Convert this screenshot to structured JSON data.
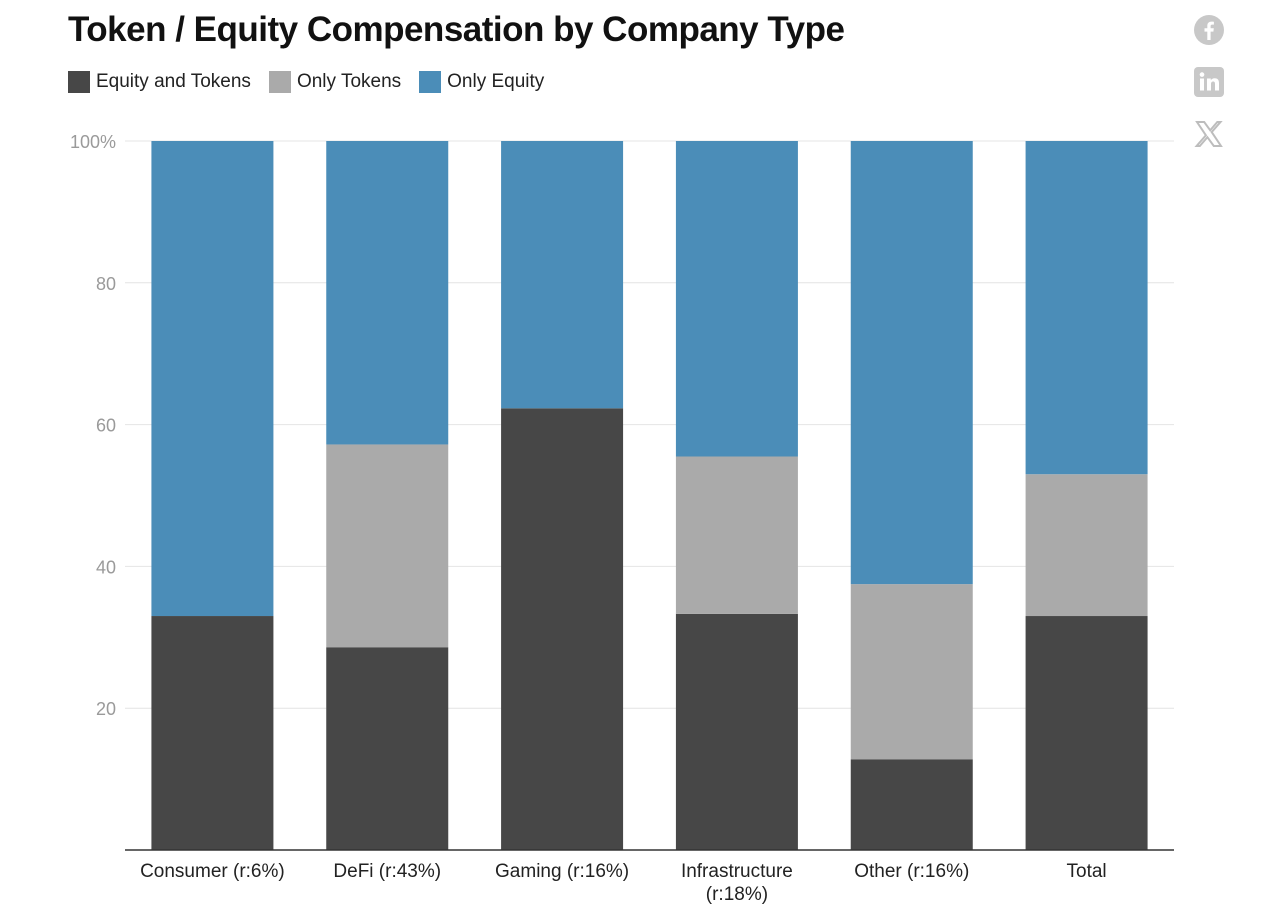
{
  "header": {
    "title": "Token / Equity Compensation by Company Type"
  },
  "legend": {
    "items": [
      {
        "label": "Equity and Tokens",
        "color": "#474747"
      },
      {
        "label": "Only Tokens",
        "color": "#aaaaaa"
      },
      {
        "label": "Only Equity",
        "color": "#4b8db8"
      }
    ]
  },
  "share": {
    "icons": [
      "facebook-icon",
      "linkedin-icon",
      "x-twitter-icon"
    ]
  },
  "chart_data": {
    "type": "bar",
    "stacked": true,
    "title": "Token / Equity Compensation by Company Type",
    "categories": [
      [
        "Consumer (r:6%)"
      ],
      [
        "DeFi (r:43%)"
      ],
      [
        "Gaming (r:16%)"
      ],
      [
        "Infrastructure",
        "(r:18%)"
      ],
      [
        "Other (r:16%)"
      ],
      [
        "Total"
      ]
    ],
    "series": [
      {
        "name": "Equity and Tokens",
        "color": "#474747",
        "values": [
          33,
          28.6,
          62.3,
          33.3,
          12.8,
          33
        ]
      },
      {
        "name": "Only Tokens",
        "color": "#aaaaaa",
        "values": [
          0,
          28.6,
          0,
          22.2,
          24.7,
          20
        ]
      },
      {
        "name": "Only Equity",
        "color": "#4b8db8",
        "values": [
          67,
          42.8,
          37.7,
          44.5,
          62.5,
          47
        ]
      }
    ],
    "ylim": [
      0,
      100
    ],
    "yticks": [
      20,
      40,
      60,
      80,
      100
    ],
    "ytick_labels": [
      "20",
      "40",
      "60",
      "80",
      "100%"
    ],
    "xlabel": "",
    "ylabel": "",
    "grid": true
  }
}
